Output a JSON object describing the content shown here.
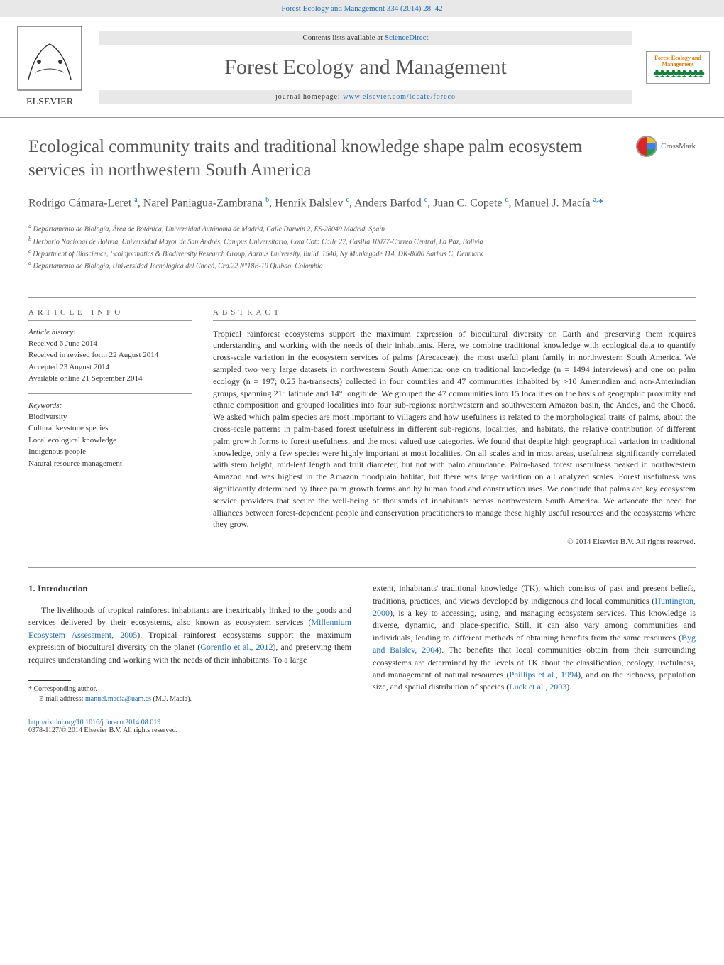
{
  "top_link": "Forest Ecology and Management 334 (2014) 28–42",
  "contents_prefix": "Contents lists available at ",
  "contents_link": "ScienceDirect",
  "journal_name": "Forest Ecology and Management",
  "homepage_prefix": "journal homepage: ",
  "homepage_link": "www.elsevier.com/locate/foreco",
  "cover": {
    "title": "Forest Ecology\nand Management",
    "trees": "♣♣♣ ♣♣♣ ♣♣♣"
  },
  "crossmark": "CrossMark",
  "title": "Ecological community traits and traditional knowledge shape palm ecosystem services in northwestern South America",
  "authors_html": "Rodrigo Cámara-Leret <sup>a</sup>, Narel Paniagua-Zambrana <sup>b</sup>, Henrik Balslev <sup>c</sup>, Anders Barfod <sup>c</sup>, Juan C. Copete <sup>d</sup>, Manuel J. Macía <sup>a,</sup><span class='star'>*</span>",
  "affiliations": [
    "a Departamento de Biología, Área de Botánica, Universidad Autónoma de Madrid, Calle Darwin 2, ES-28049 Madrid, Spain",
    "b Herbario Nacional de Bolivia, Universidad Mayor de San Andrés, Campus Universitario, Cota Cota Calle 27, Casilla 10077-Correo Central, La Paz, Bolivia",
    "c Department of Bioscience, Ecoinformatics & Biodiversity Research Group, Aarhus University, Build. 1540, Ny Munkegade 114, DK-8000 Aarhus C, Denmark",
    "d Departamento de Biología, Universidad Tecnológica del Chocó, Cra.22 N°18B-10 Quibdó, Colombia"
  ],
  "info": {
    "heading": "ARTICLE INFO",
    "history_label": "Article history:",
    "history": [
      "Received 6 June 2014",
      "Received in revised form 22 August 2014",
      "Accepted 23 August 2014",
      "Available online 21 September 2014"
    ],
    "keywords_label": "Keywords:",
    "keywords": [
      "Biodiversity",
      "Cultural keystone species",
      "Local ecological knowledge",
      "Indigenous people",
      "Natural resource management"
    ]
  },
  "abstract": {
    "heading": "ABSTRACT",
    "text": "Tropical rainforest ecosystems support the maximum expression of biocultural diversity on Earth and preserving them requires understanding and working with the needs of their inhabitants. Here, we combine traditional knowledge with ecological data to quantify cross-scale variation in the ecosystem services of palms (Arecaceae), the most useful plant family in northwestern South America. We sampled two very large datasets in northwestern South America: one on traditional knowledge (n = 1494 interviews) and one on palm ecology (n = 197; 0.25 ha-transects) collected in four countries and 47 communities inhabited by >10 Amerindian and non-Amerindian groups, spanning 21° latitude and 14° longitude. We grouped the 47 communities into 15 localities on the basis of geographic proximity and ethnic composition and grouped localities into four sub-regions: northwestern and southwestern Amazon basin, the Andes, and the Chocó. We asked which palm species are most important to villagers and how usefulness is related to the morphological traits of palms, about the cross-scale patterns in palm-based forest usefulness in different sub-regions, localities, and habitats, the relative contribution of different palm growth forms to forest usefulness, and the most valued use categories. We found that despite high geographical variation in traditional knowledge, only a few species were highly important at most localities. On all scales and in most areas, usefulness significantly correlated with stem height, mid-leaf length and fruit diameter, but not with palm abundance. Palm-based forest usefulness peaked in northwestern Amazon and was highest in the Amazon floodplain habitat, but there was large variation on all analyzed scales. Forest usefulness was significantly determined by three palm growth forms and by human food and construction uses. We conclude that palms are key ecosystem service providers that secure the well-being of thousands of inhabitants across northwestern South America. We advocate the need for alliances between forest-dependent people and conservation practitioners to manage these highly useful resources and the ecosystems where they grow.",
    "copyright": "© 2014 Elsevier B.V. All rights reserved."
  },
  "section1": {
    "heading": "1. Introduction",
    "left": "The livelihoods of tropical rainforest inhabitants are inextricably linked to the goods and services delivered by their ecosystems, also known as ecosystem services (<a href='#'>Millennium Ecosystem Assessment, 2005</a>). Tropical rainforest ecosystems support the maximum expression of biocultural diversity on the planet (<a href='#'>Gorenflo et al., 2012</a>), and preserving them requires understanding and working with the needs of their inhabitants. To a large",
    "right": "extent, inhabitants' traditional knowledge (TK), which consists of past and present beliefs, traditions, practices, and views developed by indigenous and local communities (<a href='#'>Huntington, 2000</a>), is a key to accessing, using, and managing ecosystem services. This knowledge is diverse, dynamic, and place-specific. Still, it can also vary among communities and individuals, leading to different methods of obtaining benefits from the same resources (<a href='#'>Byg and Balslev, 2004</a>). The benefits that local communities obtain from their surrounding ecosystems are determined by the levels of TK about the classification, ecology, usefulness, and management of natural resources (<a href='#'>Phillips et al., 1994</a>), and on the richness, population size, and spatial distribution of species (<a href='#'>Luck et al., 2003</a>)."
  },
  "footnote": {
    "corr": "* Corresponding author.",
    "email_label": "E-mail address: ",
    "email": "manuel.macia@uam.es",
    "email_suffix": " (M.J. Macía)."
  },
  "footer": {
    "doi": "http://dx.doi.org/10.1016/j.foreco.2014.08.019",
    "issn": "0378-1127/© 2014 Elsevier B.V. All rights reserved."
  },
  "colors": {
    "link": "#1a6bb3",
    "text": "#333333",
    "heading": "#555555",
    "bg_grey": "#e8e8e8"
  }
}
